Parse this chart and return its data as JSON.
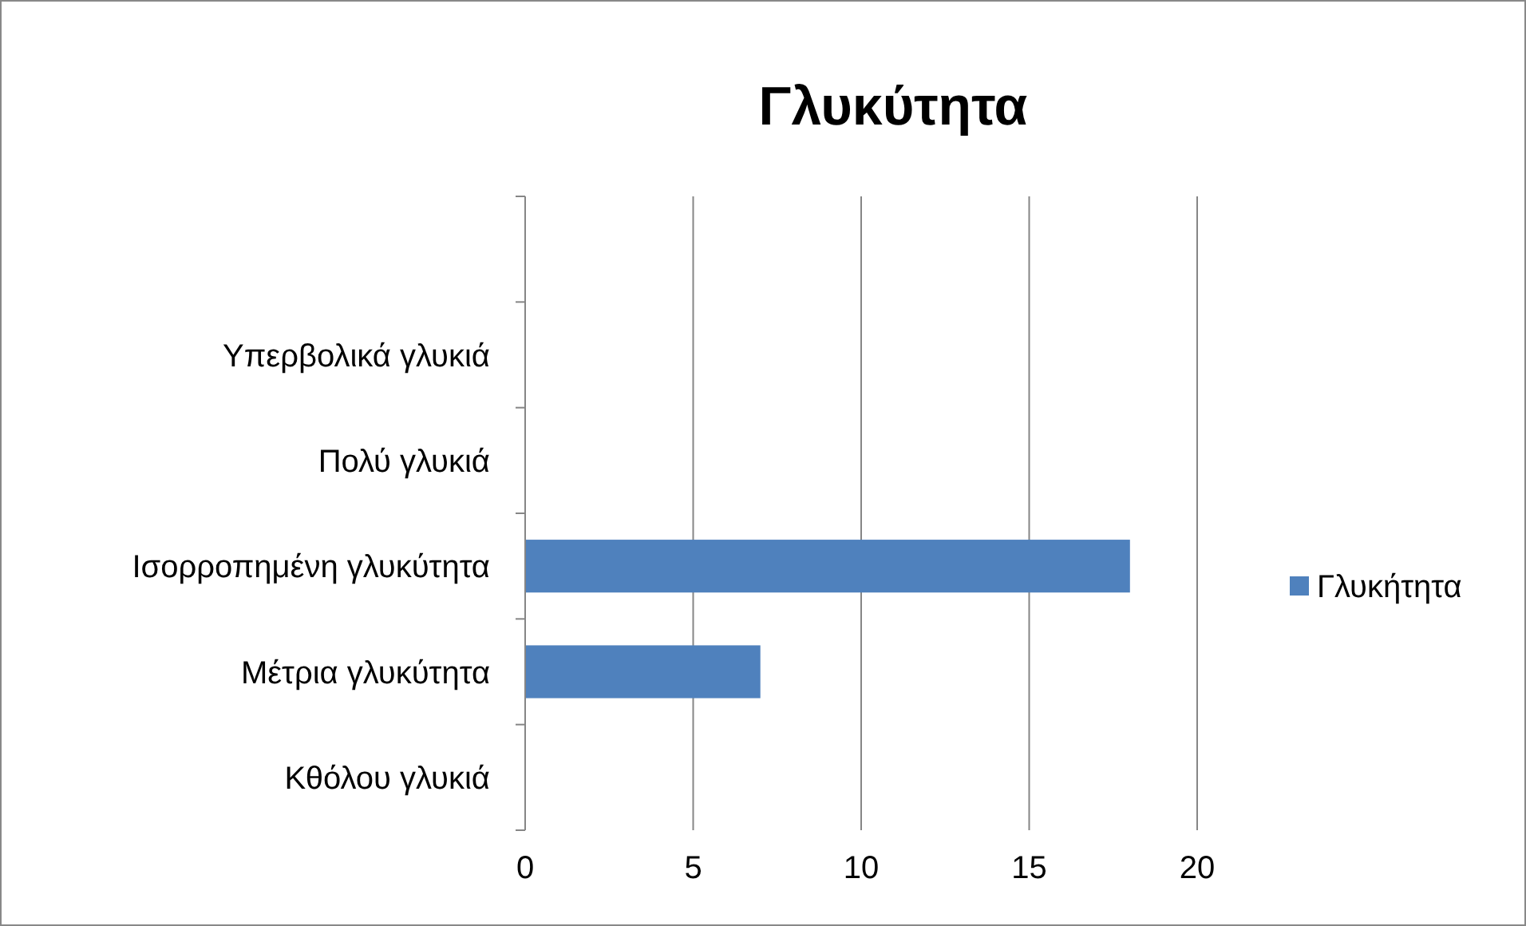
{
  "chart_data": {
    "type": "bar",
    "orientation": "horizontal",
    "title": "Γλυκύτητα",
    "categories": [
      null,
      "Υπερβολικά γλυκιά",
      "Πολύ γλυκιά",
      "Ισορροπημένη γλυκύτητα",
      "Μέτρια γλυκύτητα",
      "Κθόλου γλυκιά"
    ],
    "series": [
      {
        "name": "Γλυκήτητα",
        "color": "#4f81bd",
        "values": [
          0,
          0,
          0,
          18,
          7,
          0
        ]
      }
    ],
    "xlim": [
      0,
      20
    ],
    "xticks": [
      0,
      5,
      10,
      15,
      20
    ],
    "grid": "x",
    "legend": "right"
  }
}
